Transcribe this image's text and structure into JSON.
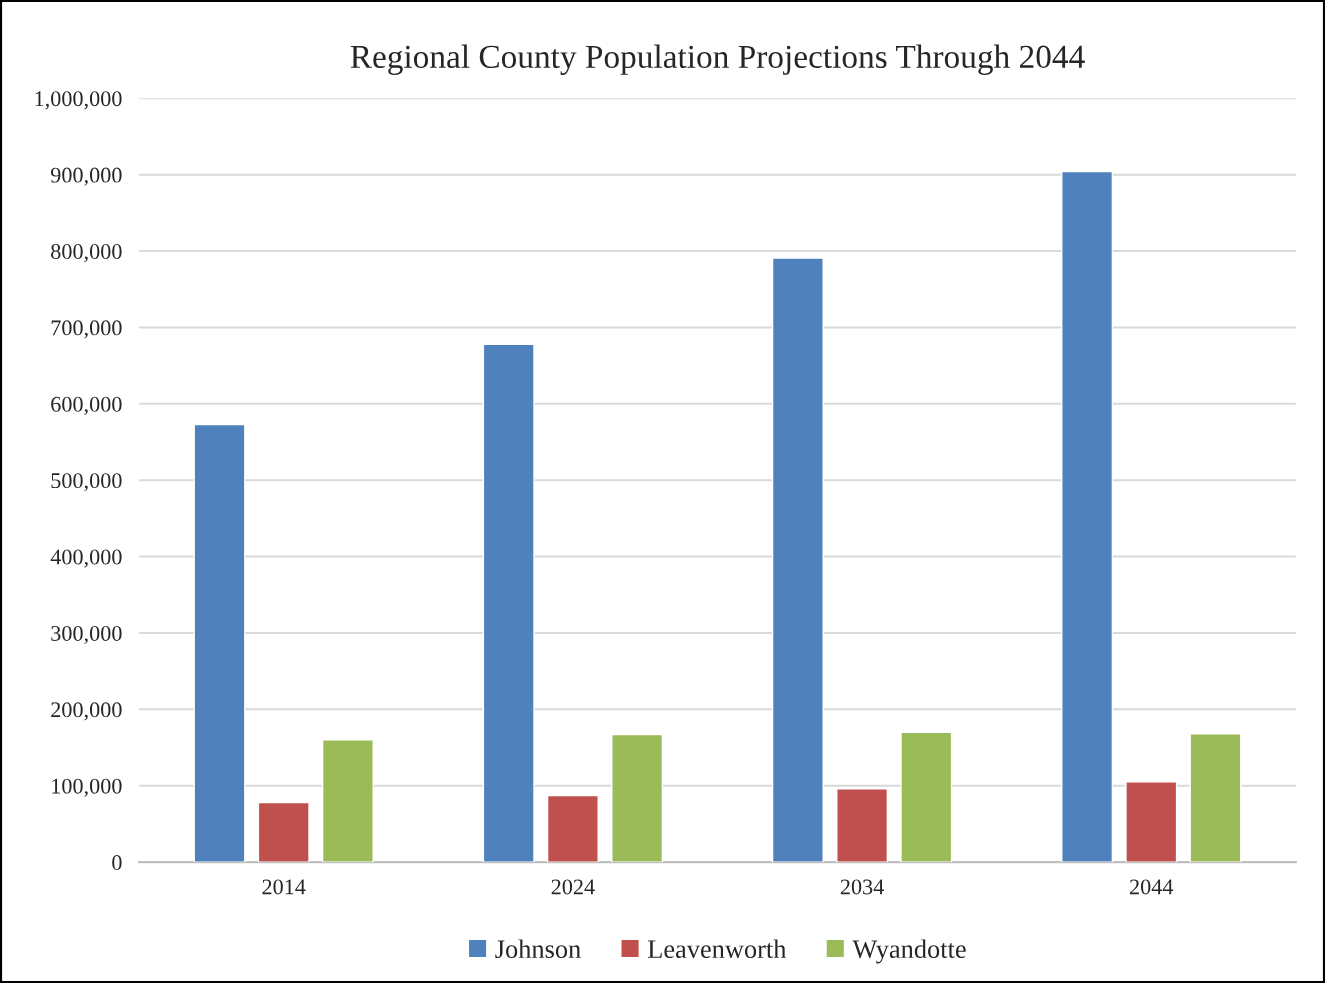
{
  "chart_data": {
    "type": "bar",
    "title": "Regional County Population Projections Through 2044",
    "categories": [
      "2014",
      "2024",
      "2034",
      "2044"
    ],
    "series": [
      {
        "name": "Johnson",
        "color": "#4f81bd",
        "values": [
          573000,
          678000,
          791000,
          904000
        ]
      },
      {
        "name": "Leavenworth",
        "color": "#c0504d",
        "values": [
          78000,
          87000,
          96000,
          105000
        ]
      },
      {
        "name": "Wyandotte",
        "color": "#9bbb59",
        "values": [
          160000,
          167000,
          170000,
          168000
        ]
      }
    ],
    "ylim": [
      0,
      1000000
    ],
    "yticks": [
      {
        "value": 0,
        "label": "0"
      },
      {
        "value": 100000,
        "label": "100,000"
      },
      {
        "value": 200000,
        "label": "200,000"
      },
      {
        "value": 300000,
        "label": "300,000"
      },
      {
        "value": 400000,
        "label": "400,000"
      },
      {
        "value": 500000,
        "label": "500,000"
      },
      {
        "value": 600000,
        "label": "600,000"
      },
      {
        "value": 700000,
        "label": "700,000"
      },
      {
        "value": 800000,
        "label": "800,000"
      },
      {
        "value": 900000,
        "label": "900,000"
      },
      {
        "value": 1000000,
        "label": "1,000,000"
      }
    ],
    "grid": "y",
    "legend": "bottom"
  }
}
